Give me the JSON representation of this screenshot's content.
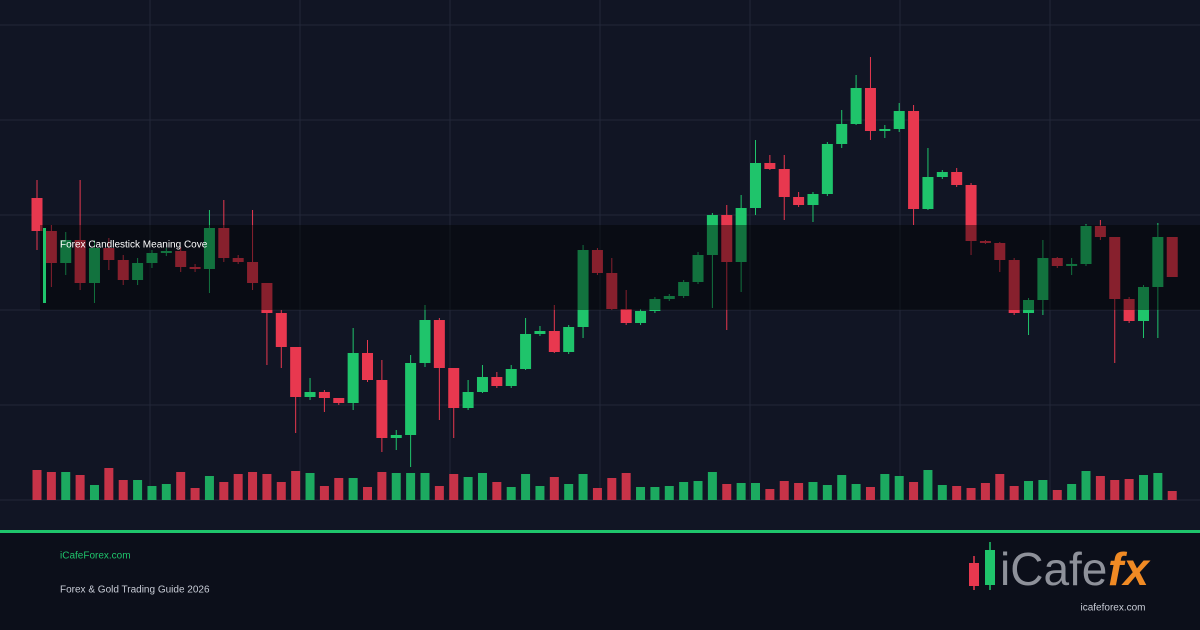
{
  "chart_data": {
    "type": "candlestick",
    "overlay_text": "Forex Candlestick Meaning Cove",
    "up_color": "#1fc46b",
    "down_color": "#e8384f",
    "ylim": [
      0,
      500
    ],
    "yticks": [
      0,
      95,
      190,
      285,
      380,
      475
    ],
    "grid": true,
    "open": [
      302,
      269,
      237,
      260,
      217,
      252,
      240,
      220,
      237,
      247,
      249,
      233,
      231,
      272,
      242,
      238,
      217,
      187,
      153,
      103,
      108,
      102,
      97,
      147,
      120,
      62,
      65,
      137,
      180,
      132,
      92,
      108,
      123,
      114,
      131,
      166,
      169,
      148,
      173,
      250,
      227,
      191,
      177,
      189,
      201,
      204,
      218,
      245,
      285,
      238,
      292,
      337,
      331,
      303,
      295,
      306,
      356,
      376,
      412,
      369,
      371,
      389,
      291,
      323,
      328,
      315,
      259,
      257,
      240,
      187,
      200,
      242,
      234,
      236,
      274,
      263,
      201,
      179,
      213,
      263
    ],
    "high": [
      320,
      275,
      268,
      320,
      260,
      262,
      245,
      242,
      250,
      252,
      253,
      236,
      290,
      300,
      245,
      290,
      217,
      190,
      153,
      122,
      110,
      102,
      172,
      160,
      140,
      70,
      145,
      195,
      182,
      132,
      120,
      135,
      128,
      135,
      182,
      174,
      195,
      175,
      255,
      252,
      242,
      210,
      191,
      203,
      206,
      220,
      248,
      287,
      295,
      305,
      360,
      345,
      345,
      308,
      308,
      358,
      390,
      425,
      443,
      375,
      397,
      395,
      352,
      330,
      332,
      317,
      260,
      258,
      242,
      202,
      260,
      243,
      242,
      276,
      280,
      263,
      203,
      215,
      277,
      263
    ],
    "low": [
      250,
      213,
      225,
      210,
      197,
      230,
      215,
      215,
      232,
      244,
      228,
      228,
      207,
      238,
      236,
      210,
      135,
      132,
      67,
      100,
      88,
      95,
      90,
      118,
      48,
      50,
      33,
      133,
      80,
      62,
      90,
      107,
      112,
      112,
      130,
      164,
      147,
      146,
      162,
      225,
      190,
      175,
      175,
      187,
      199,
      202,
      216,
      192,
      170,
      208,
      285,
      330,
      280,
      293,
      278,
      304,
      352,
      375,
      360,
      362,
      368,
      275,
      290,
      321,
      313,
      245,
      256,
      228,
      185,
      165,
      185,
      232,
      225,
      234,
      260,
      137,
      177,
      162,
      162,
      223
    ],
    "close": [
      269,
      237,
      260,
      217,
      252,
      240,
      220,
      237,
      247,
      249,
      233,
      231,
      272,
      242,
      238,
      217,
      187,
      153,
      103,
      108,
      102,
      97,
      147,
      120,
      62,
      65,
      137,
      180,
      132,
      92,
      108,
      123,
      114,
      131,
      166,
      169,
      148,
      173,
      250,
      227,
      191,
      177,
      189,
      201,
      204,
      218,
      245,
      285,
      238,
      292,
      337,
      331,
      303,
      295,
      306,
      356,
      376,
      412,
      369,
      371,
      389,
      291,
      323,
      328,
      315,
      259,
      257,
      240,
      187,
      200,
      242,
      234,
      236,
      274,
      263,
      201,
      179,
      213,
      263,
      223
    ],
    "volume": [
      30,
      28,
      28,
      25,
      15,
      32,
      20,
      20,
      14,
      16,
      28,
      12,
      24,
      18,
      26,
      28,
      26,
      18,
      29,
      27,
      14,
      22,
      22,
      13,
      28,
      27,
      27,
      27,
      14,
      26,
      23,
      27,
      18,
      13,
      26,
      14,
      23,
      16,
      26,
      12,
      22,
      27,
      13,
      13,
      14,
      18,
      19,
      28,
      16,
      17,
      17,
      11,
      19,
      17,
      18,
      15,
      25,
      16,
      13,
      26,
      24,
      18,
      30,
      15,
      14,
      12,
      17,
      26,
      14,
      19,
      20,
      10,
      16,
      29,
      24,
      20,
      21,
      25,
      27,
      9
    ]
  },
  "footer": {
    "site": "iCafeForex.com",
    "tagline": "Forex & Gold Trading Guide 2026",
    "logo_main": "iCafe",
    "logo_accent": "fx",
    "logo_url": "icafeforex.com"
  }
}
